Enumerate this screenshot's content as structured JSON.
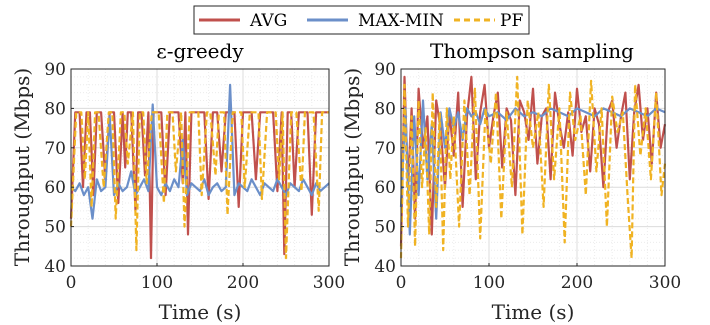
{
  "chart_data": [
    {
      "type": "line",
      "title": "ε-greedy",
      "xlabel": "Time (s)",
      "ylabel": "Throughput (Mbps)",
      "xlim": [
        0,
        300
      ],
      "ylim": [
        40,
        90
      ],
      "xticks": [
        "0",
        "100",
        "200",
        "300"
      ],
      "yticks": [
        "40",
        "50",
        "60",
        "70",
        "80",
        "90"
      ],
      "grid": true,
      "series": [
        {
          "name": "AVG",
          "color": "#c0504d",
          "x": [
            0,
            5,
            10,
            14,
            18,
            22,
            26,
            30,
            35,
            40,
            45,
            50,
            55,
            60,
            63,
            66,
            70,
            75,
            78,
            82,
            86,
            90,
            93,
            96,
            100,
            105,
            110,
            115,
            120,
            125,
            130,
            133,
            136,
            140,
            145,
            150,
            155,
            160,
            165,
            170,
            175,
            180,
            185,
            190,
            195,
            200,
            205,
            210,
            215,
            220,
            225,
            230,
            235,
            240,
            245,
            248,
            252,
            256,
            260,
            265,
            270,
            275,
            280,
            285,
            290,
            295,
            300
          ],
          "values": [
            52,
            79,
            79,
            60,
            79,
            79,
            58,
            79,
            79,
            62,
            79,
            79,
            56,
            79,
            65,
            79,
            79,
            54,
            79,
            79,
            63,
            79,
            42,
            79,
            79,
            79,
            58,
            79,
            79,
            79,
            61,
            79,
            48,
            79,
            79,
            79,
            79,
            57,
            79,
            79,
            64,
            79,
            79,
            79,
            55,
            79,
            79,
            79,
            62,
            79,
            79,
            79,
            79,
            59,
            79,
            43,
            79,
            79,
            60,
            79,
            79,
            79,
            53,
            79,
            79,
            79,
            79
          ]
        },
        {
          "name": "MAX-MIN",
          "color": "#6b8fc9",
          "x": [
            0,
            5,
            10,
            15,
            20,
            25,
            30,
            35,
            40,
            45,
            50,
            55,
            60,
            65,
            70,
            75,
            80,
            85,
            90,
            95,
            100,
            105,
            110,
            115,
            120,
            125,
            130,
            135,
            140,
            145,
            150,
            155,
            160,
            165,
            170,
            175,
            180,
            185,
            190,
            195,
            200,
            205,
            210,
            215,
            220,
            225,
            230,
            235,
            240,
            245,
            250,
            255,
            260,
            265,
            270,
            275,
            280,
            285,
            290,
            295,
            300
          ],
          "values": [
            60,
            59,
            61,
            58,
            60,
            52,
            62,
            59,
            60,
            78,
            58,
            61,
            59,
            60,
            64,
            58,
            60,
            62,
            59,
            81,
            60,
            58,
            61,
            59,
            62,
            60,
            72,
            58,
            61,
            60,
            59,
            62,
            58,
            60,
            61,
            59,
            60,
            86,
            58,
            61,
            60,
            59,
            62,
            60,
            58,
            61,
            60,
            59,
            62,
            60,
            58,
            61,
            60,
            59,
            62,
            60,
            58,
            61,
            59,
            60,
            61
          ]
        },
        {
          "name": "PF",
          "color": "#f0b323",
          "dash": true,
          "x": [
            0,
            6,
            12,
            16,
            20,
            24,
            28,
            32,
            38,
            44,
            48,
            52,
            58,
            62,
            66,
            72,
            76,
            80,
            84,
            88,
            94,
            98,
            102,
            108,
            112,
            118,
            122,
            128,
            132,
            138,
            142,
            148,
            152,
            158,
            162,
            168,
            172,
            178,
            182,
            188,
            192,
            198,
            202,
            208,
            212,
            218,
            222,
            228,
            232,
            238,
            242,
            246,
            250,
            256,
            262,
            268,
            272,
            278,
            282,
            288,
            292,
            300
          ],
          "values": [
            50,
            79,
            79,
            62,
            79,
            55,
            79,
            79,
            60,
            79,
            79,
            52,
            79,
            79,
            66,
            79,
            44,
            79,
            79,
            61,
            79,
            79,
            79,
            56,
            79,
            79,
            64,
            79,
            50,
            79,
            79,
            79,
            58,
            79,
            79,
            63,
            79,
            79,
            53,
            79,
            79,
            79,
            60,
            79,
            79,
            79,
            57,
            79,
            79,
            79,
            62,
            79,
            42,
            79,
            79,
            59,
            79,
            79,
            79,
            54,
            79,
            79
          ]
        }
      ]
    },
    {
      "type": "line",
      "title": "Thompson sampling",
      "xlabel": "Time (s)",
      "ylabel": "Throughput (Mbps)",
      "xlim": [
        0,
        300
      ],
      "ylim": [
        40,
        90
      ],
      "xticks": [
        "0",
        "100",
        "200",
        "300"
      ],
      "yticks": [
        "40",
        "50",
        "60",
        "70",
        "80",
        "90"
      ],
      "grid": true,
      "series": [
        {
          "name": "AVG",
          "color": "#c0504d",
          "x": [
            0,
            4,
            8,
            12,
            16,
            20,
            25,
            30,
            35,
            40,
            45,
            50,
            55,
            60,
            65,
            70,
            75,
            80,
            85,
            90,
            95,
            100,
            105,
            110,
            115,
            120,
            125,
            130,
            135,
            140,
            145,
            150,
            155,
            160,
            165,
            170,
            175,
            180,
            185,
            190,
            195,
            200,
            205,
            210,
            215,
            220,
            225,
            230,
            235,
            240,
            245,
            250,
            255,
            260,
            265,
            270,
            275,
            280,
            285,
            290,
            295,
            300
          ],
          "values": [
            45,
            88,
            60,
            80,
            52,
            85,
            70,
            78,
            48,
            82,
            75,
            60,
            79,
            68,
            84,
            55,
            78,
            88,
            62,
            79,
            86,
            70,
            78,
            84,
            65,
            80,
            77,
            58,
            82,
            79,
            72,
            85,
            66,
            78,
            80,
            62,
            84,
            76,
            70,
            79,
            68,
            85,
            74,
            78,
            64,
            80,
            76,
            60,
            79,
            82,
            70,
            78,
            84,
            62,
            79,
            86,
            72,
            80,
            66,
            84,
            70,
            76
          ]
        },
        {
          "name": "MAX-MIN",
          "color": "#6b8fc9",
          "x": [
            0,
            5,
            10,
            15,
            20,
            25,
            30,
            35,
            40,
            45,
            50,
            55,
            60,
            65,
            70,
            75,
            80,
            85,
            90,
            95,
            100,
            110,
            120,
            130,
            140,
            150,
            160,
            170,
            180,
            190,
            200,
            210,
            220,
            230,
            240,
            250,
            260,
            270,
            280,
            290,
            300
          ],
          "values": [
            55,
            80,
            48,
            78,
            58,
            82,
            62,
            76,
            52,
            79,
            70,
            80,
            75,
            79,
            72,
            80,
            78,
            79,
            76,
            80,
            78,
            79,
            77,
            80,
            78,
            79,
            78,
            80,
            79,
            78,
            80,
            79,
            78,
            80,
            79,
            78,
            80,
            79,
            78,
            80,
            79
          ]
        },
        {
          "name": "PF",
          "color": "#f0b323",
          "dash": true,
          "x": [
            0,
            4,
            8,
            12,
            16,
            20,
            24,
            28,
            32,
            36,
            40,
            44,
            48,
            52,
            56,
            60,
            66,
            72,
            78,
            84,
            90,
            96,
            102,
            108,
            114,
            120,
            126,
            132,
            138,
            144,
            150,
            156,
            162,
            168,
            174,
            180,
            186,
            192,
            198,
            204,
            210,
            216,
            222,
            228,
            234,
            240,
            246,
            252,
            258,
            262,
            266,
            272,
            278,
            284,
            290,
            296,
            300
          ],
          "values": [
            42,
            86,
            50,
            78,
            45,
            82,
            60,
            75,
            48,
            84,
            55,
            79,
            44,
            80,
            62,
            78,
            50,
            82,
            58,
            85,
            47,
            80,
            66,
            84,
            52,
            79,
            60,
            88,
            48,
            82,
            70,
            79,
            55,
            86,
            62,
            80,
            46,
            84,
            72,
            78,
            58,
            87,
            64,
            80,
            50,
            83,
            74,
            79,
            56,
            42,
            86,
            68,
            80,
            62,
            84,
            58,
            66
          ]
        }
      ]
    }
  ],
  "legend": {
    "entries": [
      {
        "label": "AVG",
        "color": "#c0504d",
        "dash": false
      },
      {
        "label": "MAX-MIN",
        "color": "#6b8fc9",
        "dash": false
      },
      {
        "label": "PF",
        "color": "#f0b323",
        "dash": true
      }
    ]
  }
}
